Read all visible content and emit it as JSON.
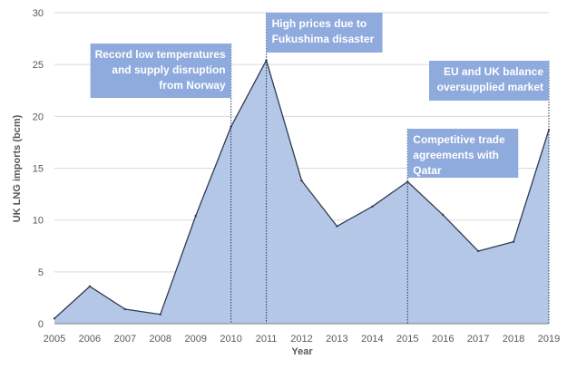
{
  "chart_data": {
    "type": "area",
    "title": "",
    "xlabel": "Year",
    "ylabel": "UK LNG imports (bcm)",
    "x": [
      2005,
      2006,
      2007,
      2008,
      2009,
      2010,
      2011,
      2012,
      2013,
      2014,
      2015,
      2016,
      2017,
      2018,
      2019
    ],
    "x_tick_labels": [
      "2005",
      "2006",
      "2007",
      "2008",
      "2009",
      "2010",
      "2011",
      "2012",
      "2013",
      "2014",
      "2015",
      "2016",
      "2017",
      "2018",
      "2019"
    ],
    "series": [
      {
        "name": "UK LNG imports",
        "values": [
          0.5,
          3.6,
          1.4,
          0.9,
          10.4,
          19.0,
          25.4,
          13.8,
          9.4,
          11.3,
          13.7,
          10.5,
          7.0,
          7.9,
          18.7
        ]
      }
    ],
    "ylim": [
      0,
      30
    ],
    "y_ticks": [
      0,
      5,
      10,
      15,
      20,
      25,
      30
    ],
    "grid": true,
    "colors": {
      "fill": "#b4c7e7",
      "line": "#2f3b52",
      "annotation_bg": "#8faadc",
      "grid": "#d9d9d9"
    },
    "annotations": [
      {
        "lines": [
          "Record low temperatures",
          "and supply disruption",
          "from Norway"
        ],
        "x": 2010,
        "align": "right"
      },
      {
        "lines": [
          "High prices due to",
          "Fukushima disaster"
        ],
        "x": 2011,
        "align": "left"
      },
      {
        "lines": [
          "Competitive trade",
          "agreements with",
          "Qatar"
        ],
        "x": 2015,
        "align": "left"
      },
      {
        "lines": [
          "EU and UK balance",
          "oversupplied market"
        ],
        "x": 2019,
        "align": "right"
      }
    ]
  }
}
